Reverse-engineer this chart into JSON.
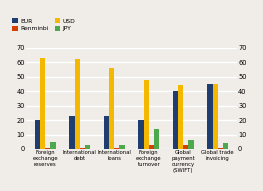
{
  "categories": [
    "Foreign\nexchange\nreserves",
    "International\ndebt",
    "International\nloans",
    "Foreign\nexchange\nturnover",
    "Global\npayment\ncurrency\n(SWIFT)",
    "Global trade\ninvoicing"
  ],
  "series": {
    "EUR": [
      20,
      23,
      23,
      20,
      40,
      45
    ],
    "USD": [
      63,
      62,
      56,
      48,
      44,
      45
    ],
    "Renminbi": [
      1,
      0.5,
      0.5,
      3,
      2.5,
      1
    ],
    "JPY": [
      5,
      2.5,
      3,
      14,
      6,
      4
    ]
  },
  "colors": {
    "EUR": "#1f3d6e",
    "USD": "#f5b800",
    "Renminbi": "#d44000",
    "JPY": "#4ea84e"
  },
  "ylim": [
    0,
    70
  ],
  "yticks": [
    0,
    10,
    20,
    30,
    40,
    50,
    60,
    70
  ],
  "background_color": "#f0ede8",
  "grid_color": "#ffffff"
}
